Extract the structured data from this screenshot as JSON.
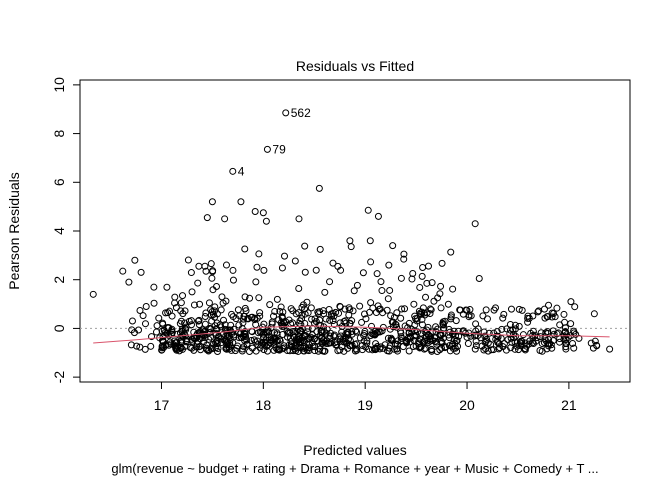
{
  "chart_data": {
    "type": "scatter",
    "title": "Residuals vs Fitted",
    "xlabel": "Predicted values",
    "ylabel": "Pearson Residuals",
    "subtitle": "glm(revenue ~ budget + rating + Drama + Romance + year + Music + Comedy + T ...",
    "xlim": [
      16.2,
      21.6
    ],
    "ylim": [
      -2.2,
      10.2
    ],
    "x_ticks": [
      "17",
      "18",
      "19",
      "20",
      "21"
    ],
    "y_ticks": [
      "-2",
      "0",
      "2",
      "4",
      "6",
      "8",
      "10"
    ],
    "reference_line_y": 0,
    "labeled_points": [
      {
        "label": "562",
        "x": 18.22,
        "y": 8.85
      },
      {
        "label": "79",
        "x": 18.04,
        "y": 7.35
      },
      {
        "label": "4",
        "x": 17.7,
        "y": 6.45
      }
    ],
    "notable_points": [
      {
        "x": 16.33,
        "y": 1.4
      },
      {
        "x": 16.62,
        "y": 2.35
      },
      {
        "x": 16.68,
        "y": 1.9
      },
      {
        "x": 16.8,
        "y": 2.3
      },
      {
        "x": 16.85,
        "y": 0.9
      },
      {
        "x": 17.3,
        "y": 1.5
      },
      {
        "x": 17.45,
        "y": 4.55
      },
      {
        "x": 17.5,
        "y": 5.2
      },
      {
        "x": 17.62,
        "y": 4.5
      },
      {
        "x": 17.78,
        "y": 5.2
      },
      {
        "x": 17.92,
        "y": 4.8
      },
      {
        "x": 18.0,
        "y": 4.75
      },
      {
        "x": 18.03,
        "y": 4.4
      },
      {
        "x": 18.35,
        "y": 4.5
      },
      {
        "x": 18.55,
        "y": 5.75
      },
      {
        "x": 18.85,
        "y": 3.6
      },
      {
        "x": 19.03,
        "y": 4.85
      },
      {
        "x": 19.05,
        "y": 3.6
      },
      {
        "x": 19.13,
        "y": 4.6
      },
      {
        "x": 19.27,
        "y": 3.4
      },
      {
        "x": 20.08,
        "y": 4.3
      },
      {
        "x": 20.12,
        "y": 2.05
      },
      {
        "x": 20.8,
        "y": 0.95
      },
      {
        "x": 21.02,
        "y": 1.1
      },
      {
        "x": 21.25,
        "y": 0.6
      },
      {
        "x": 21.4,
        "y": -0.85
      }
    ],
    "smooth_line": [
      {
        "x": 16.33,
        "y": -0.6
      },
      {
        "x": 16.8,
        "y": -0.45
      },
      {
        "x": 17.2,
        "y": -0.3
      },
      {
        "x": 17.6,
        "y": -0.15
      },
      {
        "x": 18.0,
        "y": 0.05
      },
      {
        "x": 18.5,
        "y": 0.1
      },
      {
        "x": 19.0,
        "y": 0.05
      },
      {
        "x": 19.5,
        "y": -0.05
      },
      {
        "x": 20.0,
        "y": -0.2
      },
      {
        "x": 20.5,
        "y": -0.3
      },
      {
        "x": 21.0,
        "y": -0.3
      },
      {
        "x": 21.4,
        "y": -0.35
      }
    ],
    "grid": false,
    "legend": "none",
    "colors": {
      "points": "#000000",
      "smooth": "#d9536b",
      "reference": "#a0a0a0"
    }
  }
}
